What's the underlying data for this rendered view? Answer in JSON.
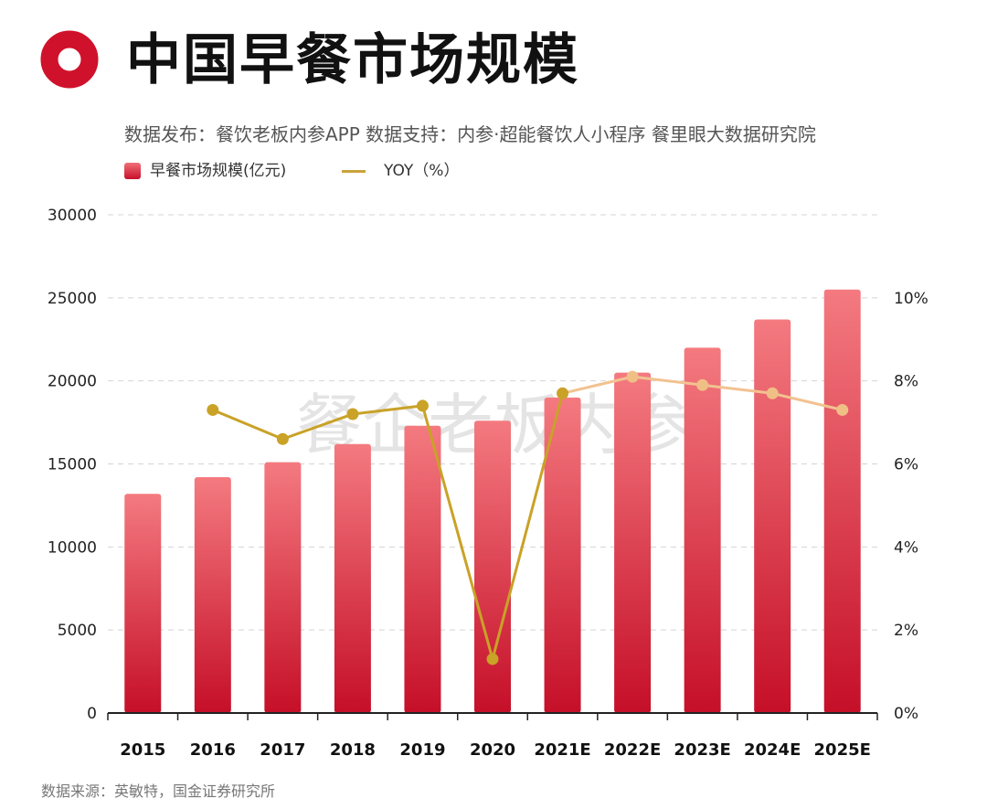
{
  "header": {
    "title": "中国早餐市场规模",
    "source_line": "数据发布：餐饮老板内参APP  数据支持：内参·超能餐饮人小程序   餐里眼大数据研究院"
  },
  "footer": {
    "source": "数据来源：英敏特，国金证券研究所"
  },
  "colors": {
    "bar_top": "#f47a80",
    "bar_bottom": "#c50f28",
    "line_actual": "#c9a227",
    "line_estimate": "#f2c290",
    "logo": "#d0112b"
  },
  "chart_data": {
    "type": "bar",
    "categories": [
      "2015",
      "2016",
      "2017",
      "2018",
      "2019",
      "2020",
      "2021E",
      "2022E",
      "2023E",
      "2024E",
      "2025E"
    ],
    "series": [
      {
        "name": "早餐市场规模(亿元)",
        "type": "bar",
        "axis": "left",
        "values": [
          13200,
          14200,
          15100,
          16200,
          17300,
          17600,
          19000,
          20500,
          22000,
          23700,
          25500
        ]
      },
      {
        "name": "YOY（%）",
        "type": "line",
        "axis": "right",
        "values": [
          null,
          7.3,
          6.6,
          7.2,
          7.4,
          1.3,
          7.7,
          8.1,
          7.9,
          7.7,
          7.3
        ]
      }
    ],
    "y_left": {
      "min": 0,
      "max": 30000,
      "ticks": [
        "0",
        "5000",
        "10000",
        "15000",
        "20000",
        "25000",
        "30000"
      ]
    },
    "y_right": {
      "min": 0,
      "max": 12,
      "ticks": [
        "0%",
        "2%",
        "4%",
        "6%",
        "8%",
        "10%"
      ]
    },
    "grid": true,
    "legend": "top-left",
    "watermark": "餐企老板内参"
  }
}
